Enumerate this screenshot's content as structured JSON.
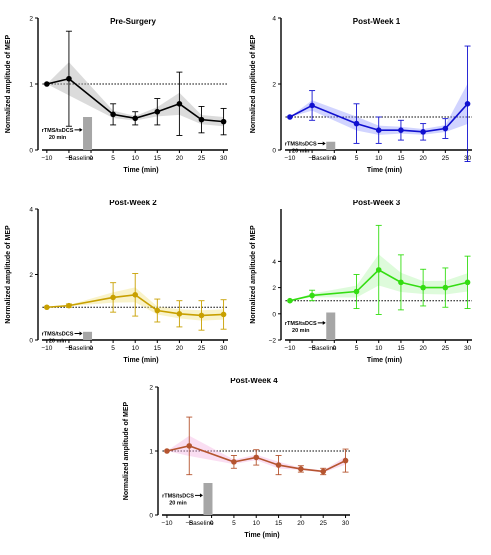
{
  "chart_data": [
    {
      "type": "line",
      "title": "Pre-Surgery",
      "color": "#000000",
      "shade": "#b0b0b0",
      "xlabel": "Time (min)",
      "ylabel": "Normalized amplitude of  MEP",
      "xticks": [
        "−10",
        "−5",
        "Baseline",
        "0",
        "5",
        "10",
        "15",
        "20",
        "25",
        "30"
      ],
      "yticks": [
        "0",
        "1",
        "2"
      ],
      "ylim": [
        0,
        2
      ],
      "baseline_y": 1,
      "stim_label": "rTMS/tsDCS",
      "stim_sub": "20 min",
      "stim_height": 0.5,
      "x": [
        -10,
        -5,
        5,
        10,
        15,
        20,
        25,
        30
      ],
      "y": [
        1.0,
        1.08,
        0.54,
        0.48,
        0.58,
        0.7,
        0.46,
        0.43
      ],
      "err": [
        0.0,
        0.72,
        0.16,
        0.1,
        0.2,
        0.48,
        0.2,
        0.2
      ]
    },
    {
      "type": "line",
      "title": "Post-Week 1",
      "color": "#1010d0",
      "shade": "#9aa0ff",
      "xlabel": "Time (min)",
      "ylabel": "Normalized amplitude of  MEP",
      "xticks": [
        "−10",
        "−5",
        "Baseline",
        "0",
        "5",
        "10",
        "15",
        "20",
        "25",
        "30"
      ],
      "yticks": [
        "0",
        "2",
        "4"
      ],
      "ylim": [
        0,
        4
      ],
      "baseline_y": 1,
      "stim_label": "rTMS/tsDCS",
      "stim_sub": "20 min",
      "stim_height": 0.25,
      "x": [
        -10,
        -5,
        5,
        10,
        15,
        20,
        25,
        30
      ],
      "y": [
        1.0,
        1.35,
        0.8,
        0.6,
        0.6,
        0.55,
        0.65,
        1.4
      ],
      "err": [
        0.0,
        0.45,
        0.6,
        0.4,
        0.3,
        0.25,
        0.3,
        1.75
      ]
    },
    {
      "type": "line",
      "title": "Post-Week 2",
      "color": "#c8a000",
      "shade": "#f2e48a",
      "xlabel": "Time (min)",
      "ylabel": "Normalized amplitude of  MEP",
      "xticks": [
        "−10",
        "−5",
        "Baseline",
        "0",
        "5",
        "10",
        "15",
        "20",
        "25",
        "30"
      ],
      "yticks": [
        "0",
        "2",
        "4"
      ],
      "ylim": [
        0,
        4
      ],
      "baseline_y": 1,
      "stim_label": "rTMS/tsDCS",
      "stim_sub": "20 min",
      "stim_height": 0.25,
      "x": [
        -10,
        -5,
        5,
        10,
        15,
        20,
        25,
        30
      ],
      "y": [
        1.0,
        1.05,
        1.3,
        1.38,
        0.9,
        0.8,
        0.75,
        0.78
      ],
      "err": [
        0.0,
        0.05,
        0.45,
        0.65,
        0.35,
        0.4,
        0.45,
        0.45
      ]
    },
    {
      "type": "line",
      "title": "Post-Week 3",
      "color": "#33dd11",
      "shade": "#b6f7b0",
      "xlabel": "Time (min)",
      "ylabel": "Normalized amplitude of  MEP",
      "xticks": [
        "−10",
        "−5",
        "Baseline",
        "0",
        "5",
        "10",
        "15",
        "20",
        "25",
        "30"
      ],
      "yticks": [
        "−2",
        "0",
        "2",
        "4"
      ],
      "ylim": [
        -2,
        8
      ],
      "baseline_y": 1,
      "stim_label": "rTMS/tsDCS",
      "stim_sub": "20 min",
      "stim_height": 0.1,
      "x": [
        -10,
        -5,
        5,
        10,
        15,
        20,
        25,
        30
      ],
      "y": [
        1.0,
        1.4,
        1.7,
        3.35,
        2.4,
        2.0,
        2.0,
        2.4
      ],
      "err": [
        0.0,
        0.4,
        1.3,
        3.4,
        2.1,
        1.4,
        1.5,
        2.0
      ]
    },
    {
      "type": "line",
      "title": "Post-Week 4",
      "color": "#b5542f",
      "shade": "#f3b5e3",
      "xlabel": "Time (min)",
      "ylabel": "Normalized amplitude of  MEP",
      "xticks": [
        "−10",
        "−5",
        "Baseline",
        "0",
        "5",
        "10",
        "15",
        "20",
        "25",
        "30"
      ],
      "yticks": [
        "0",
        "1",
        "2"
      ],
      "ylim": [
        0,
        2
      ],
      "baseline_y": 1,
      "stim_label": "rTMS/tsDCS",
      "stim_sub": "20 min",
      "stim_height": 0.5,
      "x": [
        -10,
        -5,
        5,
        10,
        15,
        20,
        25,
        30
      ],
      "y": [
        1.0,
        1.08,
        0.83,
        0.9,
        0.78,
        0.72,
        0.68,
        0.85
      ],
      "err": [
        0.0,
        0.45,
        0.1,
        0.12,
        0.15,
        0.05,
        0.05,
        0.18
      ]
    }
  ]
}
